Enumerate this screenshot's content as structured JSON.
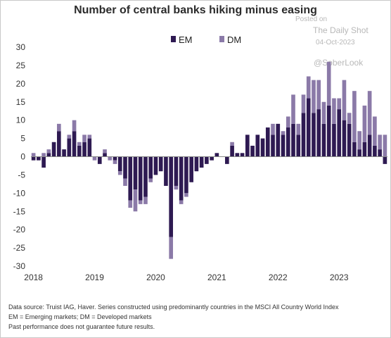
{
  "chart_data": {
    "type": "bar",
    "stacked": true,
    "title": "Number of central banks hiking minus easing",
    "ylim": [
      -30,
      30
    ],
    "yticks": [
      -30,
      -25,
      -20,
      -15,
      -10,
      -5,
      0,
      5,
      10,
      15,
      20,
      25,
      30
    ],
    "xticks": [
      "2018",
      "2019",
      "2020",
      "2021",
      "2022",
      "2023"
    ],
    "legend_placement": "top",
    "grid": false,
    "colors": {
      "EM": "#2e1a52",
      "DM": "#8b7aa8"
    },
    "series": [
      {
        "name": "EM",
        "values": [
          -1,
          -1,
          -3,
          1,
          4,
          7,
          2,
          5,
          7,
          3,
          4,
          5,
          0,
          -2,
          1,
          0,
          -1,
          -4,
          -6,
          -12,
          -9,
          -12,
          -11,
          -6,
          -5,
          -4,
          -8,
          -22,
          -8,
          -12,
          -10,
          -7,
          -4,
          -3,
          -2,
          -1,
          1,
          0,
          -2,
          3,
          1,
          1,
          6,
          3,
          6,
          5,
          8,
          6,
          9,
          6,
          8,
          9,
          6,
          12,
          16,
          12,
          13,
          9,
          14,
          9,
          13,
          10,
          9,
          4,
          2,
          4,
          6,
          3,
          2,
          -2
        ]
      },
      {
        "name": "DM",
        "values": [
          1,
          0,
          1,
          1,
          0,
          2,
          0,
          1,
          3,
          1,
          2,
          1,
          -1,
          0,
          1,
          -1,
          -1,
          -1,
          -2,
          -2,
          -6,
          -1,
          -2,
          -1,
          0,
          0,
          0,
          -6,
          -1,
          -1,
          -1,
          0,
          0,
          0,
          0,
          0,
          0,
          0,
          0,
          1,
          0,
          0,
          0,
          0,
          0,
          0,
          0,
          3,
          0,
          1,
          3,
          8,
          3,
          5,
          6,
          9,
          8,
          6,
          12,
          7,
          3,
          11,
          3,
          14,
          5,
          10,
          12,
          8,
          4,
          6
        ]
      }
    ]
  },
  "watermark": {
    "posted": "Posted on",
    "source": "The Daily Shot",
    "date": "04-Oct-2023",
    "handle": "@SoberLook"
  },
  "notes": {
    "line1": "Data source: Truist IAG, Haver. Series constructed using predominantly countries in the MSCI All Country World Index",
    "line2": "EM = Emerging markets; DM = Developed markets",
    "line3": "Past performance does not guarantee future results."
  }
}
